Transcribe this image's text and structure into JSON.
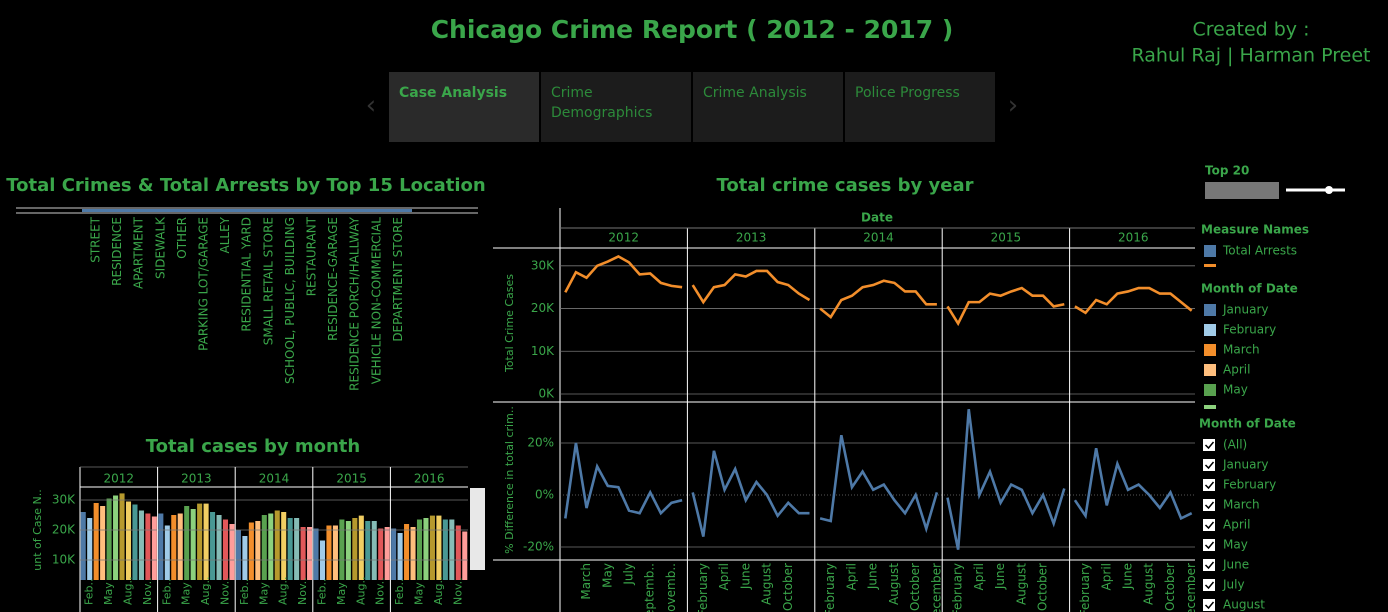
{
  "header": {
    "title": "Chicago Crime Report ( 2012 - 2017 )",
    "created_by": "Created by :",
    "authors": "Rahul Raj | Harman Preet"
  },
  "tabs": [
    "Case Analysis",
    "Crime",
    "Demographics",
    "Crime Analysis",
    "Police Progress"
  ],
  "chart_data": [
    {
      "type": "bar",
      "title": "Total Crimes & Total Arrests by Top 15 Location",
      "categories": [
        "STREET",
        "RESIDENCE",
        "APARTMENT",
        "SIDEWALK",
        "OTHER",
        "PARKING LOT/GARAGE",
        "ALLEY",
        "RESIDENTIAL YARD",
        "SMALL RETAIL STORE",
        "SCHOOL, PUBLIC, BUILDING",
        "RESTAURANT",
        "RESIDENCE-GARAGE",
        "RESIDENCE PORCH/HALLWAY",
        "VEHICLE NON-COMMERCIAL",
        "DEPARTMENT STORE"
      ]
    },
    {
      "type": "line",
      "title": "Total crime cases  by year",
      "x_label": "Date",
      "y_label": "Total Crime Cases",
      "color": "#f28e2b",
      "ylim": [
        0,
        33000
      ],
      "yticks": [
        {
          "value": 0,
          "label": "0K"
        },
        {
          "value": 10000,
          "label": "10K"
        },
        {
          "value": 20000,
          "label": "20K"
        },
        {
          "value": 30000,
          "label": "30K"
        }
      ],
      "y2_label": "% Difference in total crim..",
      "y2_color": "#4e79a7",
      "y2lim": [
        -25,
        35
      ],
      "y2ticks": [
        {
          "value": -20,
          "label": "-20%"
        },
        {
          "value": 0,
          "label": "0%"
        },
        {
          "value": 20,
          "label": "20%"
        }
      ],
      "panels": [
        {
          "label": "2012",
          "categories": [
            null,
            null,
            "March",
            null,
            "May",
            null,
            "July",
            null,
            "Septemb..",
            null,
            "Novemb..",
            null
          ],
          "values": [
            23800,
            28500,
            27200,
            30000,
            31000,
            32200,
            30800,
            28000,
            28200,
            26000,
            25300,
            25000
          ],
          "pct_values": [
            -9,
            20,
            -5,
            11,
            3.5,
            3,
            -6,
            -7,
            1,
            -7,
            -3,
            -2
          ]
        },
        {
          "label": "2013",
          "categories": [
            null,
            "February",
            null,
            "April",
            null,
            "June",
            null,
            "August",
            null,
            "October",
            null,
            null
          ],
          "values": [
            25500,
            21500,
            25000,
            25500,
            28000,
            27500,
            28800,
            28800,
            26200,
            25500,
            23500,
            22000
          ],
          "pct_values": [
            1,
            -16,
            17,
            2,
            10,
            -2,
            5,
            0,
            -8,
            -3,
            -7,
            -7
          ]
        },
        {
          "label": "2014",
          "categories": [
            null,
            "February",
            null,
            "April",
            null,
            "June",
            null,
            "August",
            null,
            "October",
            null,
            "ecember"
          ],
          "values": [
            20000,
            18000,
            22000,
            23000,
            25000,
            25500,
            26500,
            26000,
            24000,
            24000,
            21000,
            21000
          ],
          "pct_values": [
            -9,
            -10,
            23,
            3,
            9,
            2,
            4,
            -2,
            -7,
            0,
            -13,
            1
          ]
        },
        {
          "label": "2015",
          "categories": [
            null,
            "February",
            null,
            "April",
            null,
            "June",
            null,
            "August",
            null,
            "October",
            null,
            null
          ],
          "values": [
            20500,
            16500,
            21500,
            21500,
            23500,
            23000,
            24000,
            24800,
            23000,
            23000,
            20500,
            21000
          ],
          "pct_values": [
            -1,
            -21,
            33,
            0,
            9,
            -3,
            4,
            2,
            -7,
            0,
            -11,
            2.5
          ]
        },
        {
          "label": "2016",
          "categories": [
            null,
            "February",
            null,
            "April",
            null,
            "June",
            null,
            "August",
            null,
            "October",
            null,
            "ecember"
          ],
          "values": [
            20500,
            19000,
            22000,
            21000,
            23500,
            24000,
            24800,
            24800,
            23500,
            23500,
            21500,
            19500
          ],
          "pct_values": [
            -2,
            -8,
            18,
            -4,
            12,
            2,
            4,
            0,
            -5,
            1,
            -9,
            -7
          ]
        }
      ]
    },
    {
      "type": "bar",
      "title": "Total cases by month",
      "y_label": "unt of Case N..",
      "ylim": [
        0,
        33000
      ],
      "yticks": [
        {
          "value": 10000,
          "label": "10K"
        },
        {
          "value": 20000,
          "label": "20K"
        },
        {
          "value": 30000,
          "label": "30K"
        }
      ],
      "categories": [
        null,
        "Feb..",
        null,
        null,
        "May",
        null,
        null,
        "Aug..",
        null,
        null,
        "Nov..",
        null
      ],
      "colors": [
        "#4e79a7",
        "#a0cbe8",
        "#f28e2b",
        "#ffbe7d",
        "#59a14f",
        "#8cd17d",
        "#b6992d",
        "#f1ce63",
        "#499894",
        "#86bcb6",
        "#e15759",
        "#ff9d9a"
      ],
      "panels": [
        {
          "label": "2012",
          "values": [
            26000,
            24000,
            29000,
            28000,
            30500,
            31500,
            32200,
            29500,
            28500,
            26500,
            25500,
            24500
          ]
        },
        {
          "label": "2013",
          "values": [
            25500,
            21500,
            25000,
            25500,
            28000,
            27000,
            28800,
            28800,
            26000,
            25000,
            23500,
            22000
          ]
        },
        {
          "label": "2014",
          "values": [
            20000,
            18000,
            22500,
            23000,
            25000,
            25500,
            26500,
            26000,
            24000,
            24000,
            21000,
            21000
          ]
        },
        {
          "label": "2015",
          "values": [
            20500,
            16500,
            21500,
            21500,
            23500,
            23000,
            24000,
            24800,
            23000,
            23000,
            20500,
            21000
          ]
        },
        {
          "label": "2016",
          "values": [
            20500,
            19000,
            22000,
            21000,
            23500,
            24000,
            24800,
            24800,
            23500,
            23500,
            21500,
            19500
          ]
        }
      ]
    }
  ],
  "slider": {
    "label": "Top 20"
  },
  "measure_legend": {
    "title": "Measure Names",
    "items": [
      {
        "name": "Total Arrests",
        "color": "#4e79a7"
      }
    ]
  },
  "month_legend": {
    "title": "Month of Date",
    "items": [
      {
        "name": "January",
        "color": "#4e79a7"
      },
      {
        "name": "February",
        "color": "#a0cbe8"
      },
      {
        "name": "March",
        "color": "#f28e2b"
      },
      {
        "name": "April",
        "color": "#ffbe7d"
      },
      {
        "name": "May",
        "color": "#59a14f"
      }
    ]
  },
  "month_filter": {
    "title": "Month of Date",
    "items": [
      "(All)",
      "January",
      "February",
      "March",
      "April",
      "May",
      "June",
      "July",
      "August"
    ]
  }
}
